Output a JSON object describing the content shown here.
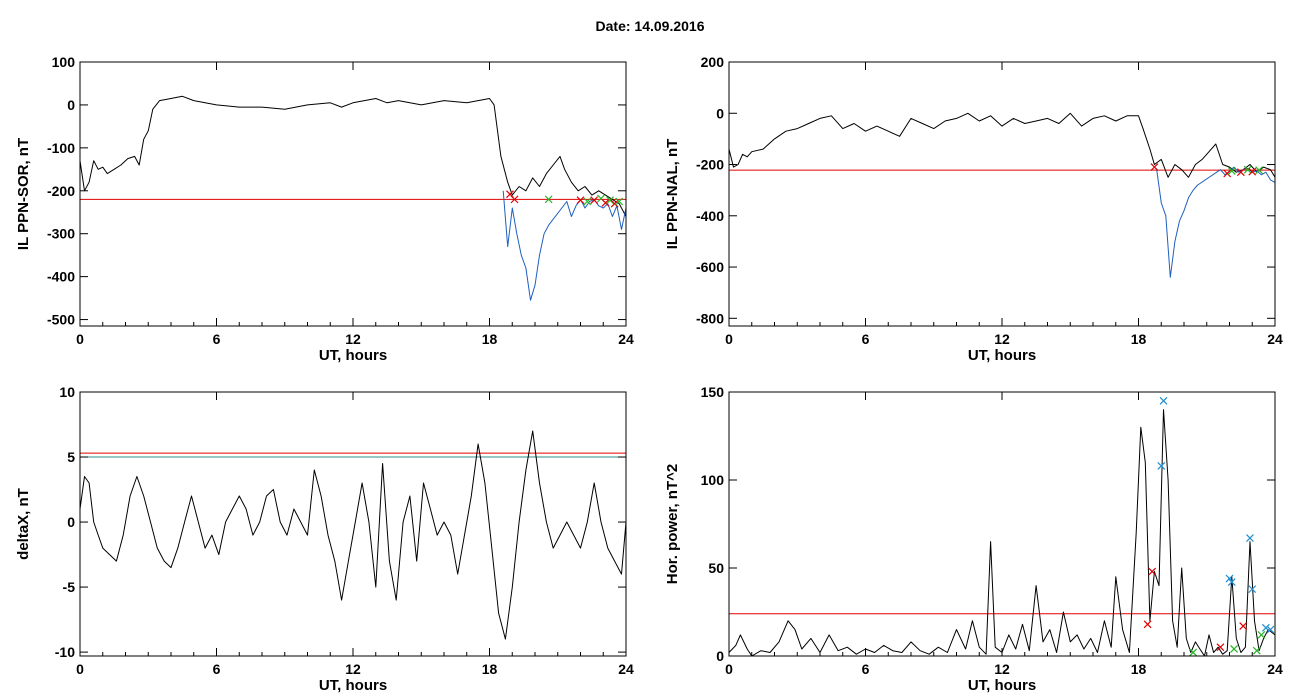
{
  "figure": {
    "title": "Date:  14.09.2016"
  },
  "chart_data": [
    {
      "id": "sor",
      "type": "line",
      "xlabel": "UT, hours",
      "ylabel": "IL PPN-SOR, nT",
      "xlim": [
        0,
        24
      ],
      "ylim": [
        -515,
        100
      ],
      "xticks": [
        "0",
        "6",
        "12",
        "18",
        "24"
      ],
      "yticks": [
        "100",
        "0",
        "-100",
        "-200",
        "-300",
        "-400",
        "-500"
      ],
      "ytick_values": [
        100,
        0,
        -100,
        -200,
        -300,
        -400,
        -500
      ],
      "series": [
        {
          "color": "#000000",
          "x": [
            0,
            0.2,
            0.4,
            0.6,
            0.8,
            1.0,
            1.2,
            1.5,
            1.8,
            2.1,
            2.4,
            2.6,
            2.8,
            3.0,
            3.2,
            3.5,
            4,
            4.5,
            5,
            5.5,
            6,
            7,
            8,
            9,
            10,
            11,
            11.5,
            12,
            12.5,
            13,
            13.5,
            14,
            15,
            16,
            17,
            17.5,
            18,
            18.2,
            18.5,
            18.8,
            19,
            19.3,
            19.6,
            19.9,
            20.2,
            20.5,
            20.8,
            21.1,
            21.3,
            21.6,
            21.9,
            22.2,
            22.5,
            22.8,
            23.1,
            23.4,
            23.7,
            24
          ],
          "y": [
            -130,
            -200,
            -180,
            -130,
            -150,
            -145,
            -160,
            -150,
            -140,
            -125,
            -120,
            -140,
            -80,
            -60,
            -10,
            10,
            15,
            20,
            10,
            5,
            0,
            -5,
            -5,
            -10,
            0,
            5,
            -5,
            5,
            10,
            15,
            5,
            10,
            0,
            10,
            5,
            10,
            15,
            0,
            -120,
            -180,
            -210,
            -190,
            -200,
            -170,
            -190,
            -160,
            -140,
            -120,
            -150,
            -180,
            -200,
            -190,
            -210,
            -200,
            -210,
            -220,
            -230,
            -260
          ]
        },
        {
          "color": "#1f5fbf",
          "x": [
            18.6,
            18.8,
            19.0,
            19.2,
            19.4,
            19.6,
            19.8,
            20.0,
            20.2,
            20.4,
            20.6,
            21.4,
            21.6,
            21.8,
            22.0,
            22.2,
            22.4,
            22.6,
            22.8,
            23.0,
            23.2,
            23.4,
            23.6,
            23.8,
            24
          ],
          "y": [
            -200,
            -330,
            -240,
            -300,
            -350,
            -380,
            -455,
            -420,
            -350,
            -300,
            -280,
            -225,
            -260,
            -235,
            -220,
            -240,
            -225,
            -220,
            -235,
            -240,
            -230,
            -260,
            -235,
            -290,
            -240
          ]
        }
      ],
      "thresholds": [
        {
          "value": -220,
          "color": "#e00000"
        }
      ],
      "markers": [
        {
          "x": 18.9,
          "y": -208,
          "color": "#e00000"
        },
        {
          "x": 19.1,
          "y": -220,
          "color": "#e00000"
        },
        {
          "x": 20.6,
          "y": -220,
          "color": "#22b422"
        },
        {
          "x": 22.0,
          "y": -222,
          "color": "#e00000"
        },
        {
          "x": 22.3,
          "y": -225,
          "color": "#22b422"
        },
        {
          "x": 22.6,
          "y": -222,
          "color": "#e00000"
        },
        {
          "x": 22.9,
          "y": -218,
          "color": "#22b422"
        },
        {
          "x": 23.1,
          "y": -228,
          "color": "#e00000"
        },
        {
          "x": 23.3,
          "y": -222,
          "color": "#22b422"
        },
        {
          "x": 23.5,
          "y": -230,
          "color": "#e00000"
        },
        {
          "x": 23.7,
          "y": -225,
          "color": "#22b422"
        }
      ]
    },
    {
      "id": "nal",
      "type": "line",
      "xlabel": "UT, hours",
      "ylabel": "IL PPN-NAL, nT",
      "xlim": [
        0,
        24
      ],
      "ylim": [
        -830,
        200
      ],
      "xticks": [
        "0",
        "6",
        "12",
        "18",
        "24"
      ],
      "yticks": [
        "200",
        "0",
        "-200",
        "-400",
        "-600",
        "-800"
      ],
      "ytick_values": [
        200,
        0,
        -200,
        -400,
        -600,
        -800
      ],
      "series": [
        {
          "color": "#000000",
          "x": [
            0,
            0.2,
            0.4,
            0.6,
            0.8,
            1.0,
            1.5,
            2.0,
            2.5,
            3.0,
            3.5,
            4,
            4.5,
            5,
            5.5,
            6,
            6.5,
            7,
            7.5,
            8,
            8.5,
            9,
            9.5,
            10,
            10.5,
            11,
            11.5,
            12,
            12.5,
            13,
            13.5,
            14,
            14.5,
            15,
            15.5,
            16,
            16.5,
            17,
            17.5,
            18,
            18.2,
            18.5,
            18.7,
            19.0,
            19.3,
            19.6,
            19.9,
            20.2,
            20.5,
            20.8,
            21.1,
            21.4,
            21.7,
            22.0,
            22.3,
            22.6,
            22.9,
            23.2,
            23.5,
            23.8,
            24
          ],
          "y": [
            -140,
            -210,
            -200,
            -160,
            -170,
            -150,
            -140,
            -100,
            -70,
            -60,
            -40,
            -20,
            -10,
            -60,
            -40,
            -70,
            -50,
            -70,
            -90,
            -20,
            -40,
            -60,
            -30,
            -20,
            0,
            -30,
            -10,
            -50,
            -20,
            -40,
            -30,
            -20,
            -40,
            0,
            -50,
            -20,
            -10,
            -30,
            -10,
            -10,
            -60,
            -140,
            -200,
            -180,
            -250,
            -200,
            -220,
            -250,
            -200,
            -180,
            -150,
            -120,
            -200,
            -210,
            -230,
            -220,
            -200,
            -230,
            -210,
            -220,
            -250
          ]
        },
        {
          "color": "#1f5fbf",
          "x": [
            18.8,
            19.0,
            19.2,
            19.4,
            19.6,
            19.8,
            20.0,
            20.2,
            20.4,
            20.6,
            21.6,
            21.8,
            22.0,
            22.2,
            22.4,
            22.6,
            22.8,
            23.0,
            23.2,
            23.4,
            23.6,
            23.8,
            24
          ],
          "y": [
            -220,
            -350,
            -400,
            -640,
            -500,
            -420,
            -380,
            -330,
            -300,
            -280,
            -220,
            -240,
            -225,
            -210,
            -230,
            -220,
            -215,
            -230,
            -225,
            -240,
            -230,
            -260,
            -270
          ]
        }
      ],
      "thresholds": [
        {
          "value": -222,
          "color": "#e00000"
        }
      ],
      "markers": [
        {
          "x": 18.7,
          "y": -210,
          "color": "#e00000"
        },
        {
          "x": 21.9,
          "y": -235,
          "color": "#e00000"
        },
        {
          "x": 22.1,
          "y": -225,
          "color": "#22b422"
        },
        {
          "x": 22.5,
          "y": -230,
          "color": "#e00000"
        },
        {
          "x": 22.8,
          "y": -220,
          "color": "#22b422"
        },
        {
          "x": 23.0,
          "y": -228,
          "color": "#e00000"
        },
        {
          "x": 23.3,
          "y": -222,
          "color": "#22b422"
        }
      ]
    },
    {
      "id": "deltax",
      "type": "line",
      "xlabel": "UT, hours",
      "ylabel": "deltaX, nT",
      "xlim": [
        0,
        24
      ],
      "ylim": [
        -10.3,
        10
      ],
      "xticks": [
        "0",
        "6",
        "12",
        "18",
        "24"
      ],
      "yticks": [
        "10",
        "5",
        "0",
        "-5",
        "-10"
      ],
      "ytick_values": [
        10,
        5,
        0,
        -5,
        -10
      ],
      "series": [
        {
          "color": "#000000",
          "x": [
            0,
            0.2,
            0.4,
            0.6,
            0.8,
            1.0,
            1.3,
            1.6,
            1.9,
            2.2,
            2.5,
            2.8,
            3.1,
            3.4,
            3.7,
            4.0,
            4.3,
            4.6,
            4.9,
            5.2,
            5.5,
            5.8,
            6.1,
            6.4,
            6.7,
            7.0,
            7.3,
            7.6,
            7.9,
            8.2,
            8.5,
            8.8,
            9.1,
            9.4,
            9.7,
            10.0,
            10.3,
            10.6,
            10.9,
            11.2,
            11.5,
            11.8,
            12.1,
            12.4,
            12.7,
            13.0,
            13.3,
            13.6,
            13.9,
            14.2,
            14.5,
            14.8,
            15.1,
            15.4,
            15.7,
            16.0,
            16.3,
            16.6,
            16.9,
            17.2,
            17.5,
            17.8,
            18.1,
            18.4,
            18.7,
            19.0,
            19.3,
            19.6,
            19.9,
            20.2,
            20.5,
            20.8,
            21.1,
            21.4,
            21.7,
            22.0,
            22.3,
            22.6,
            22.9,
            23.2,
            23.5,
            23.8,
            24
          ],
          "y": [
            1,
            3.5,
            3,
            0,
            -1,
            -2,
            -2.5,
            -3,
            -1,
            2,
            3.5,
            2,
            0,
            -2,
            -3,
            -3.5,
            -2,
            0,
            2,
            0,
            -2,
            -1,
            -2.5,
            0,
            1,
            2,
            1,
            -1,
            0,
            2,
            2.5,
            0,
            -1,
            1,
            0,
            -1,
            4,
            2,
            -1,
            -3,
            -6,
            -3,
            0,
            3,
            0,
            -5,
            4.5,
            -3,
            -6,
            0,
            2,
            -3,
            3,
            1,
            -1,
            0,
            -1,
            -4,
            -1,
            2,
            6,
            3,
            -2,
            -7,
            -9,
            -5,
            0,
            4,
            7,
            3,
            0,
            -2,
            -1,
            0,
            -1,
            -2,
            0,
            3,
            0,
            -2,
            -3,
            -4,
            0
          ]
        }
      ],
      "thresholds": [
        {
          "value": 5.3,
          "color": "#e00000"
        },
        {
          "value": 5.0,
          "color": "#2d8f8f"
        }
      ],
      "markers": []
    },
    {
      "id": "power",
      "type": "line",
      "xlabel": "UT, hours",
      "ylabel": "Hor. power, nT^2",
      "xlim": [
        0,
        24
      ],
      "ylim": [
        0,
        150
      ],
      "xticks": [
        "0",
        "6",
        "12",
        "18",
        "24"
      ],
      "yticks": [
        "150",
        "100",
        "50",
        "0"
      ],
      "ytick_values": [
        150,
        100,
        50,
        0
      ],
      "series": [
        {
          "color": "#000000",
          "x": [
            0,
            0.3,
            0.5,
            0.8,
            1.0,
            1.4,
            1.8,
            2.2,
            2.6,
            2.9,
            3.2,
            3.6,
            4.0,
            4.4,
            4.8,
            5.2,
            5.6,
            6.0,
            6.4,
            6.8,
            7.2,
            7.6,
            8.0,
            8.4,
            8.8,
            9.2,
            9.6,
            10.0,
            10.4,
            10.7,
            11.0,
            11.3,
            11.5,
            11.7,
            12.0,
            12.3,
            12.6,
            12.9,
            13.2,
            13.5,
            13.8,
            14.1,
            14.4,
            14.7,
            15.0,
            15.3,
            15.6,
            15.9,
            16.2,
            16.5,
            16.8,
            17.0,
            17.3,
            17.6,
            17.9,
            18.1,
            18.3,
            18.5,
            18.7,
            18.9,
            19.1,
            19.3,
            19.5,
            19.7,
            19.9,
            20.1,
            20.3,
            20.5,
            20.7,
            20.9,
            21.1,
            21.3,
            21.5,
            21.7,
            21.9,
            22.1,
            22.3,
            22.5,
            22.7,
            22.9,
            23.1,
            23.3,
            23.5,
            23.7,
            24
          ],
          "y": [
            2,
            6,
            12,
            4,
            0,
            3,
            2,
            8,
            20,
            15,
            4,
            10,
            2,
            12,
            3,
            5,
            1,
            4,
            2,
            6,
            3,
            2,
            8,
            3,
            1,
            5,
            2,
            15,
            4,
            20,
            5,
            1,
            65,
            5,
            2,
            12,
            4,
            18,
            3,
            40,
            8,
            15,
            2,
            25,
            8,
            12,
            4,
            10,
            2,
            20,
            5,
            45,
            15,
            2,
            70,
            130,
            110,
            20,
            48,
            40,
            140,
            100,
            20,
            5,
            50,
            10,
            2,
            8,
            4,
            0,
            12,
            2,
            5,
            1,
            3,
            45,
            10,
            2,
            5,
            65,
            20,
            3,
            10,
            15,
            12
          ]
        }
      ],
      "thresholds": [
        {
          "value": 24,
          "color": "#e00000"
        }
      ],
      "markers": [
        {
          "x": 19.1,
          "y": 145,
          "color": "#1f8fd0"
        },
        {
          "x": 19.0,
          "y": 108,
          "color": "#1f8fd0"
        },
        {
          "x": 18.6,
          "y": 48,
          "color": "#e00000"
        },
        {
          "x": 18.4,
          "y": 18,
          "color": "#e00000"
        },
        {
          "x": 22.0,
          "y": 44,
          "color": "#1f8fd0"
        },
        {
          "x": 22.1,
          "y": 42,
          "color": "#1f8fd0"
        },
        {
          "x": 22.9,
          "y": 67,
          "color": "#1f8fd0"
        },
        {
          "x": 23.0,
          "y": 38,
          "color": "#1f8fd0"
        },
        {
          "x": 23.6,
          "y": 16,
          "color": "#1f8fd0"
        },
        {
          "x": 23.8,
          "y": 15,
          "color": "#1f8fd0"
        },
        {
          "x": 21.6,
          "y": 5,
          "color": "#e00000"
        },
        {
          "x": 22.2,
          "y": 4,
          "color": "#22b422"
        },
        {
          "x": 22.6,
          "y": 17,
          "color": "#e00000"
        },
        {
          "x": 23.2,
          "y": 3,
          "color": "#22b422"
        },
        {
          "x": 20.4,
          "y": 2,
          "color": "#22b422"
        },
        {
          "x": 23.4,
          "y": 12,
          "color": "#22b422"
        }
      ]
    }
  ]
}
